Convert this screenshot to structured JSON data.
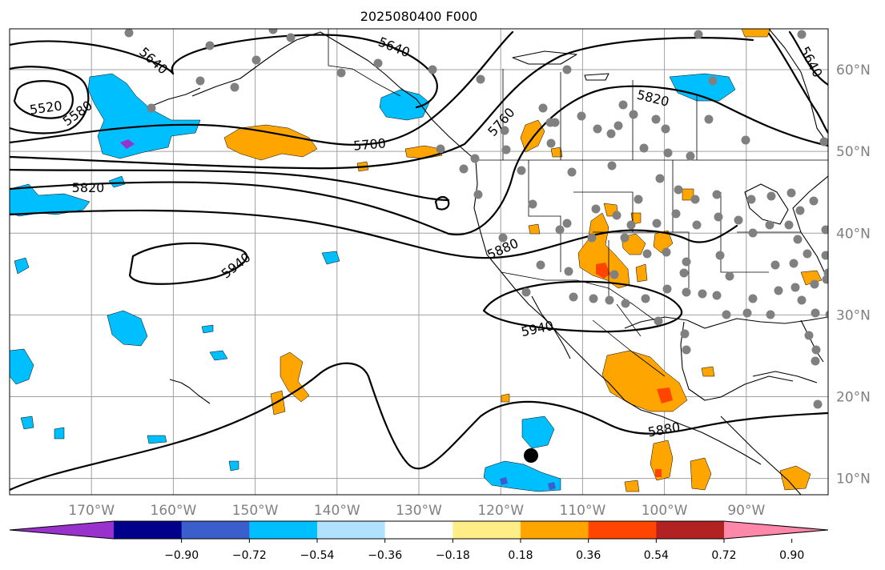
{
  "title": "2025080400 F000",
  "map": {
    "lon_range": [
      -180,
      -80
    ],
    "lat_range": [
      8,
      65
    ],
    "lon_ticks": [
      "170°W",
      "160°W",
      "150°W",
      "140°W",
      "130°W",
      "120°W",
      "110°W",
      "100°W",
      "90°W"
    ],
    "lat_ticks": [
      "10°N",
      "20°N",
      "30°N",
      "40°N",
      "50°N",
      "60°N"
    ],
    "gridlines": true
  },
  "contour_labels": [
    "5520",
    "5580",
    "5640",
    "5640",
    "5700",
    "5760",
    "5820",
    "5820",
    "5880",
    "5880",
    "5940",
    "5940",
    "5640"
  ],
  "colorbar": {
    "tick_labels": [
      "−0.90",
      "−0.72",
      "−0.54",
      "−0.36",
      "−0.18",
      "0.18",
      "0.36",
      "0.54",
      "0.72",
      "0.90"
    ],
    "colors": [
      "#9932cc",
      "#00008b",
      "#3a5fcd",
      "#00bfff",
      "#b0e2ff",
      "#ffffff",
      "#ffee88",
      "#ffa500",
      "#ff4500",
      "#b22222",
      "#ff88aa"
    ],
    "extend": "both"
  },
  "colors": {
    "contour": "#000000",
    "station_dot": "#808080",
    "storm_marker": "#000000"
  }
}
